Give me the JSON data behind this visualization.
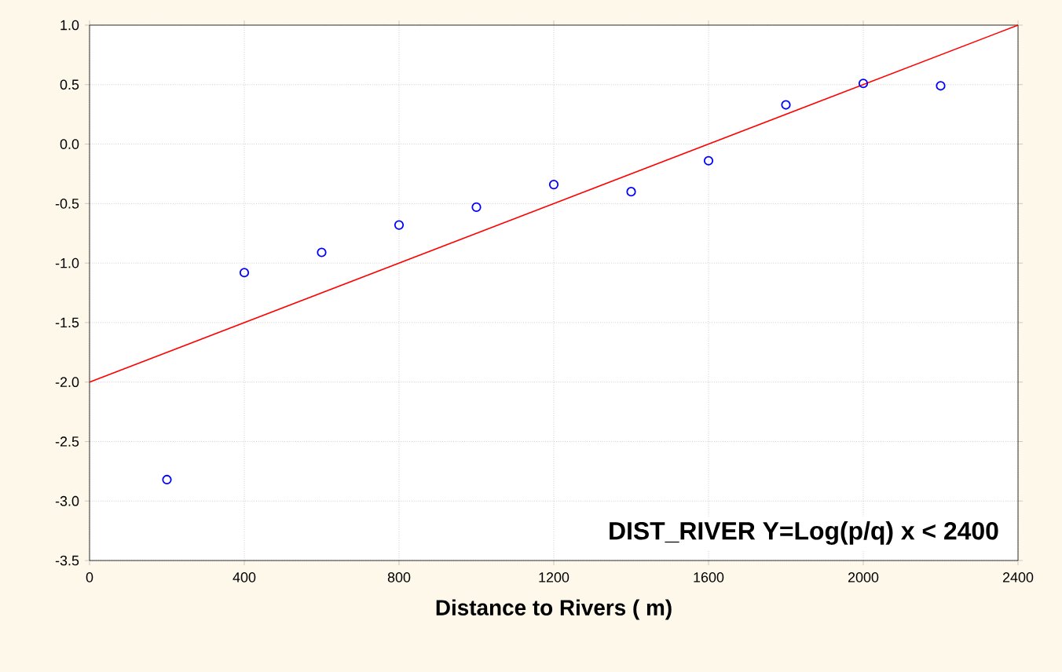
{
  "chart_data": {
    "type": "scatter",
    "xlabel": "Distance to Rivers  ( m)",
    "x": [
      200,
      400,
      600,
      800,
      1000,
      1200,
      1400,
      1600,
      1800,
      2000,
      2200
    ],
    "series": [
      {
        "color": "#0000ff",
        "marker": "circle",
        "values": [
          -2.82,
          -1.08,
          -0.91,
          -0.68,
          -0.53,
          -0.34,
          -0.4,
          -0.14,
          0.33,
          0.51,
          0.49
        ]
      },
      {
        "type": "line",
        "color": "#ff0000",
        "marker": "none",
        "x": [
          0,
          2400
        ],
        "values": [
          -2.0,
          1.0
        ]
      }
    ],
    "xlim": [
      0,
      2400
    ],
    "ylim": [
      -3.5,
      1.0
    ],
    "xticks": [
      0,
      400,
      800,
      1200,
      1600,
      2000,
      2400
    ],
    "yticks": [
      {
        "value": -3.5,
        "label": "-3.5"
      },
      {
        "value": -3.0,
        "label": "-3.0"
      },
      {
        "value": -2.5,
        "label": "-2.5"
      },
      {
        "value": -2.0,
        "label": "-2.0"
      },
      {
        "value": -1.5,
        "label": "-1.5"
      },
      {
        "value": -1.0,
        "label": "-1.0"
      },
      {
        "value": -0.5,
        "label": "-0.5"
      },
      {
        "value": 0.0,
        "label": "0.0"
      },
      {
        "value": 0.5,
        "label": "0.5"
      },
      {
        "value": 1.0,
        "label": "1.0"
      }
    ],
    "grid": true,
    "annotations": [
      "DIST_RIVER   Y=Log(p/q)     x < 2400"
    ]
  }
}
